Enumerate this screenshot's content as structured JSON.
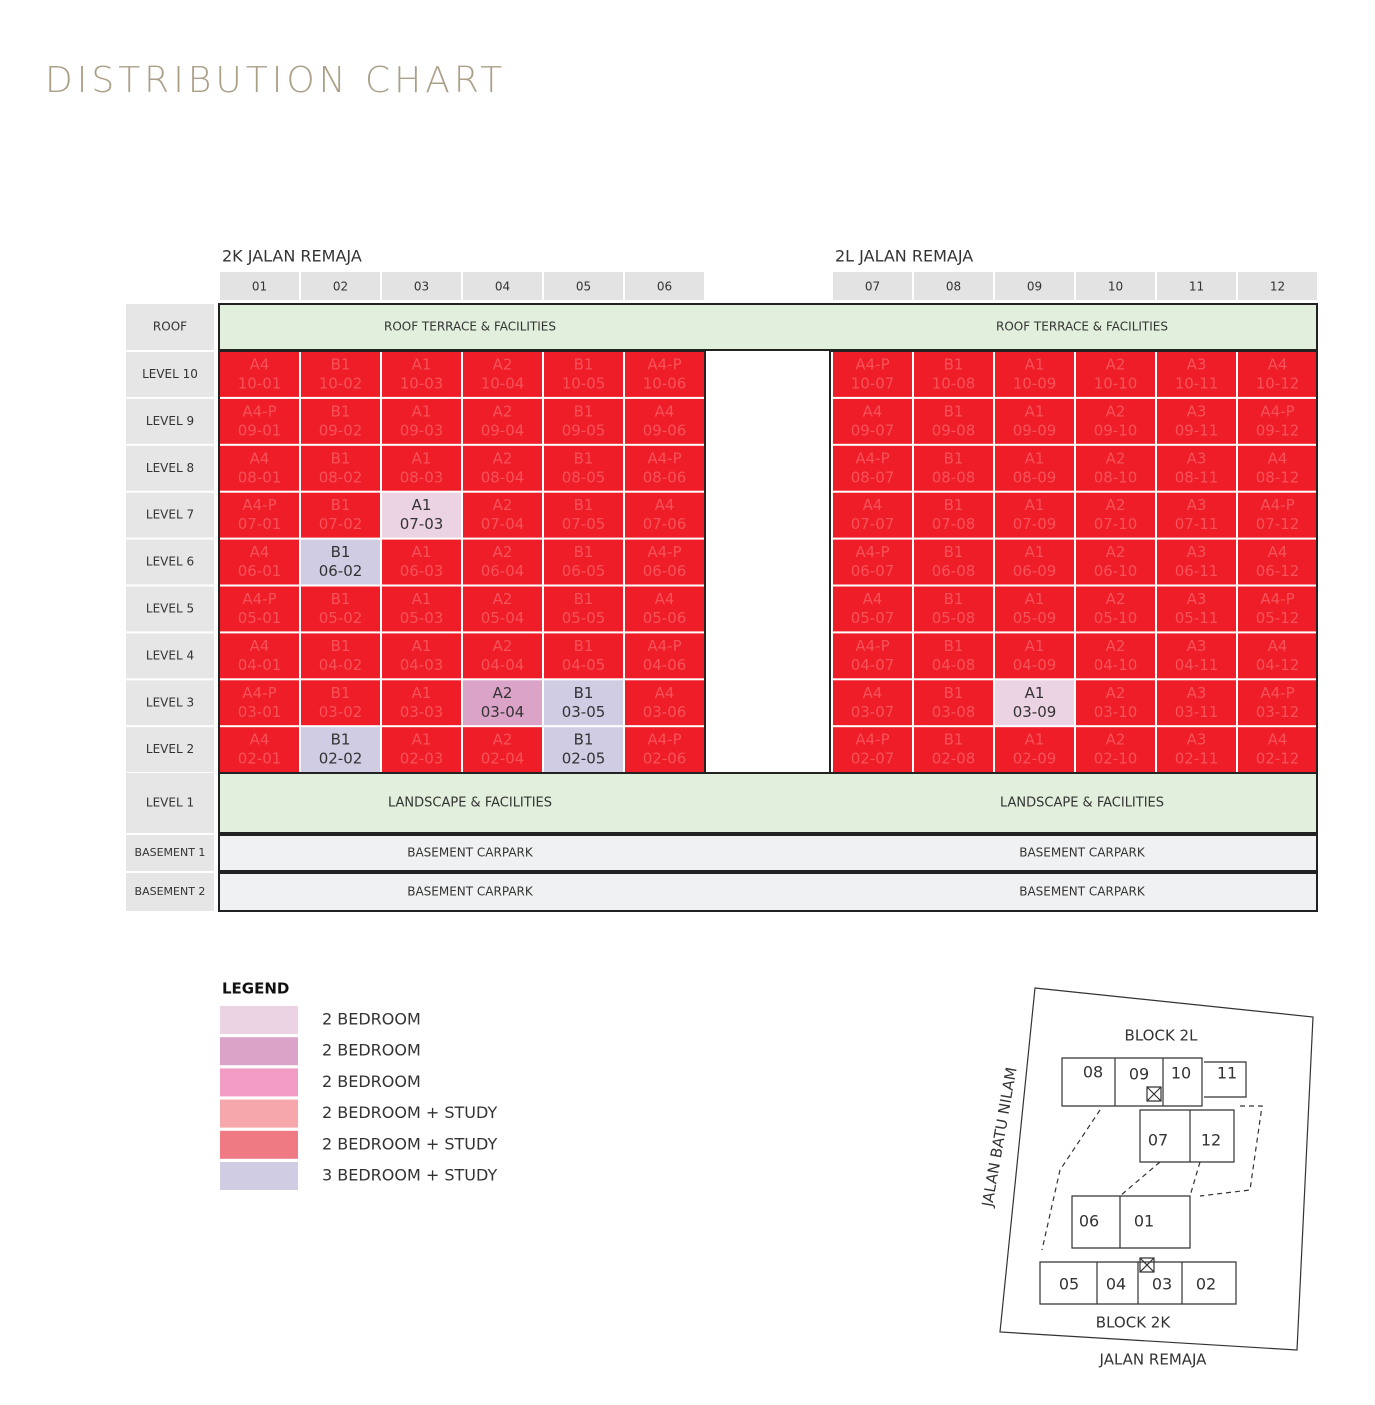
{
  "title": "DISTRIBUTION CHART",
  "blocks": [
    {
      "name": "2K JALAN REMAJA",
      "units": [
        "01",
        "02",
        "03",
        "04",
        "05",
        "06"
      ]
    },
    {
      "name": "2L JALAN REMAJA",
      "units": [
        "07",
        "08",
        "09",
        "10",
        "11",
        "12"
      ]
    }
  ],
  "roof": {
    "label": "ROOF",
    "texts": [
      "ROOF TERRACE & FACILITIES",
      "ROOF TERRACE & FACILITIES"
    ]
  },
  "sold_color": "#ee1d27",
  "levels": [
    {
      "label": "LEVEL 10",
      "cells": [
        {
          "type": "A4",
          "unit": "10-01",
          "color": "#ee1d27"
        },
        {
          "type": "B1",
          "unit": "10-02",
          "color": "#ee1d27"
        },
        {
          "type": "A1",
          "unit": "10-03",
          "color": "#ee1d27"
        },
        {
          "type": "A2",
          "unit": "10-04",
          "color": "#ee1d27"
        },
        {
          "type": "B1",
          "unit": "10-05",
          "color": "#ee1d27"
        },
        {
          "type": "A4-P",
          "unit": "10-06",
          "color": "#ee1d27"
        },
        {
          "type": "A4-P",
          "unit": "10-07",
          "color": "#ee1d27"
        },
        {
          "type": "B1",
          "unit": "10-08",
          "color": "#ee1d27"
        },
        {
          "type": "A1",
          "unit": "10-09",
          "color": "#ee1d27"
        },
        {
          "type": "A2",
          "unit": "10-10",
          "color": "#ee1d27"
        },
        {
          "type": "A3",
          "unit": "10-11",
          "color": "#ee1d27"
        },
        {
          "type": "A4",
          "unit": "10-12",
          "color": "#ee1d27"
        }
      ]
    },
    {
      "label": "LEVEL 9",
      "cells": [
        {
          "type": "A4-P",
          "unit": "09-01",
          "color": "#ee1d27"
        },
        {
          "type": "B1",
          "unit": "09-02",
          "color": "#ee1d27"
        },
        {
          "type": "A1",
          "unit": "09-03",
          "color": "#ee1d27"
        },
        {
          "type": "A2",
          "unit": "09-04",
          "color": "#ee1d27"
        },
        {
          "type": "B1",
          "unit": "09-05",
          "color": "#ee1d27"
        },
        {
          "type": "A4",
          "unit": "09-06",
          "color": "#ee1d27"
        },
        {
          "type": "A4",
          "unit": "09-07",
          "color": "#ee1d27"
        },
        {
          "type": "B1",
          "unit": "09-08",
          "color": "#ee1d27"
        },
        {
          "type": "A1",
          "unit": "09-09",
          "color": "#ee1d27"
        },
        {
          "type": "A2",
          "unit": "09-10",
          "color": "#ee1d27"
        },
        {
          "type": "A3",
          "unit": "09-11",
          "color": "#ee1d27"
        },
        {
          "type": "A4-P",
          "unit": "09-12",
          "color": "#ee1d27"
        }
      ]
    },
    {
      "label": "LEVEL 8",
      "cells": [
        {
          "type": "A4",
          "unit": "08-01",
          "color": "#ee1d27"
        },
        {
          "type": "B1",
          "unit": "08-02",
          "color": "#ee1d27"
        },
        {
          "type": "A1",
          "unit": "08-03",
          "color": "#ee1d27"
        },
        {
          "type": "A2",
          "unit": "08-04",
          "color": "#ee1d27"
        },
        {
          "type": "B1",
          "unit": "08-05",
          "color": "#ee1d27"
        },
        {
          "type": "A4-P",
          "unit": "08-06",
          "color": "#ee1d27"
        },
        {
          "type": "A4-P",
          "unit": "08-07",
          "color": "#ee1d27"
        },
        {
          "type": "B1",
          "unit": "08-08",
          "color": "#ee1d27"
        },
        {
          "type": "A1",
          "unit": "08-09",
          "color": "#ee1d27"
        },
        {
          "type": "A2",
          "unit": "08-10",
          "color": "#ee1d27"
        },
        {
          "type": "A3",
          "unit": "08-11",
          "color": "#ee1d27"
        },
        {
          "type": "A4",
          "unit": "08-12",
          "color": "#ee1d27"
        }
      ]
    },
    {
      "label": "LEVEL 7",
      "cells": [
        {
          "type": "A4-P",
          "unit": "07-01",
          "color": "#ee1d27"
        },
        {
          "type": "B1",
          "unit": "07-02",
          "color": "#ee1d27"
        },
        {
          "type": "A1",
          "unit": "07-03",
          "color": "#ecd3e3"
        },
        {
          "type": "A2",
          "unit": "07-04",
          "color": "#ee1d27"
        },
        {
          "type": "B1",
          "unit": "07-05",
          "color": "#ee1d27"
        },
        {
          "type": "A4",
          "unit": "07-06",
          "color": "#ee1d27"
        },
        {
          "type": "A4",
          "unit": "07-07",
          "color": "#ee1d27"
        },
        {
          "type": "B1",
          "unit": "07-08",
          "color": "#ee1d27"
        },
        {
          "type": "A1",
          "unit": "07-09",
          "color": "#ee1d27"
        },
        {
          "type": "A2",
          "unit": "07-10",
          "color": "#ee1d27"
        },
        {
          "type": "A3",
          "unit": "07-11",
          "color": "#ee1d27"
        },
        {
          "type": "A4-P",
          "unit": "07-12",
          "color": "#ee1d27"
        }
      ]
    },
    {
      "label": "LEVEL 6",
      "cells": [
        {
          "type": "A4",
          "unit": "06-01",
          "color": "#ee1d27"
        },
        {
          "type": "B1",
          "unit": "06-02",
          "color": "#cfcce3"
        },
        {
          "type": "A1",
          "unit": "06-03",
          "color": "#ee1d27"
        },
        {
          "type": "A2",
          "unit": "06-04",
          "color": "#ee1d27"
        },
        {
          "type": "B1",
          "unit": "06-05",
          "color": "#ee1d27"
        },
        {
          "type": "A4-P",
          "unit": "06-06",
          "color": "#ee1d27"
        },
        {
          "type": "A4-P",
          "unit": "06-07",
          "color": "#ee1d27"
        },
        {
          "type": "B1",
          "unit": "06-08",
          "color": "#ee1d27"
        },
        {
          "type": "A1",
          "unit": "06-09",
          "color": "#ee1d27"
        },
        {
          "type": "A2",
          "unit": "06-10",
          "color": "#ee1d27"
        },
        {
          "type": "A3",
          "unit": "06-11",
          "color": "#ee1d27"
        },
        {
          "type": "A4",
          "unit": "06-12",
          "color": "#ee1d27"
        }
      ]
    },
    {
      "label": "LEVEL 5",
      "cells": [
        {
          "type": "A4-P",
          "unit": "05-01",
          "color": "#ee1d27"
        },
        {
          "type": "B1",
          "unit": "05-02",
          "color": "#ee1d27"
        },
        {
          "type": "A1",
          "unit": "05-03",
          "color": "#ee1d27"
        },
        {
          "type": "A2",
          "unit": "05-04",
          "color": "#ee1d27"
        },
        {
          "type": "B1",
          "unit": "05-05",
          "color": "#ee1d27"
        },
        {
          "type": "A4",
          "unit": "05-06",
          "color": "#ee1d27"
        },
        {
          "type": "A4",
          "unit": "05-07",
          "color": "#ee1d27"
        },
        {
          "type": "B1",
          "unit": "05-08",
          "color": "#ee1d27"
        },
        {
          "type": "A1",
          "unit": "05-09",
          "color": "#ee1d27"
        },
        {
          "type": "A2",
          "unit": "05-10",
          "color": "#ee1d27"
        },
        {
          "type": "A3",
          "unit": "05-11",
          "color": "#ee1d27"
        },
        {
          "type": "A4-P",
          "unit": "05-12",
          "color": "#ee1d27"
        }
      ]
    },
    {
      "label": "LEVEL 4",
      "cells": [
        {
          "type": "A4",
          "unit": "04-01",
          "color": "#ee1d27"
        },
        {
          "type": "B1",
          "unit": "04-02",
          "color": "#ee1d27"
        },
        {
          "type": "A1",
          "unit": "04-03",
          "color": "#ee1d27"
        },
        {
          "type": "A2",
          "unit": "04-04",
          "color": "#ee1d27"
        },
        {
          "type": "B1",
          "unit": "04-05",
          "color": "#ee1d27"
        },
        {
          "type": "A4-P",
          "unit": "04-06",
          "color": "#ee1d27"
        },
        {
          "type": "A4-P",
          "unit": "04-07",
          "color": "#ee1d27"
        },
        {
          "type": "B1",
          "unit": "04-08",
          "color": "#ee1d27"
        },
        {
          "type": "A1",
          "unit": "04-09",
          "color": "#ee1d27"
        },
        {
          "type": "A2",
          "unit": "04-10",
          "color": "#ee1d27"
        },
        {
          "type": "A3",
          "unit": "04-11",
          "color": "#ee1d27"
        },
        {
          "type": "A4",
          "unit": "04-12",
          "color": "#ee1d27"
        }
      ]
    },
    {
      "label": "LEVEL 3",
      "cells": [
        {
          "type": "A4-P",
          "unit": "03-01",
          "color": "#ee1d27"
        },
        {
          "type": "B1",
          "unit": "03-02",
          "color": "#ee1d27"
        },
        {
          "type": "A1",
          "unit": "03-03",
          "color": "#ee1d27"
        },
        {
          "type": "A2",
          "unit": "03-04",
          "color": "#dca3c8"
        },
        {
          "type": "B1",
          "unit": "03-05",
          "color": "#cfcce3"
        },
        {
          "type": "A4",
          "unit": "03-06",
          "color": "#ee1d27"
        },
        {
          "type": "A4",
          "unit": "03-07",
          "color": "#ee1d27"
        },
        {
          "type": "B1",
          "unit": "03-08",
          "color": "#ee1d27"
        },
        {
          "type": "A1",
          "unit": "03-09",
          "color": "#ecd3e3"
        },
        {
          "type": "A2",
          "unit": "03-10",
          "color": "#ee1d27"
        },
        {
          "type": "A3",
          "unit": "03-11",
          "color": "#ee1d27"
        },
        {
          "type": "A4-P",
          "unit": "03-12",
          "color": "#ee1d27"
        }
      ]
    },
    {
      "label": "LEVEL 2",
      "cells": [
        {
          "type": "A4",
          "unit": "02-01",
          "color": "#ee1d27"
        },
        {
          "type": "B1",
          "unit": "02-02",
          "color": "#cfcce3"
        },
        {
          "type": "A1",
          "unit": "02-03",
          "color": "#ee1d27"
        },
        {
          "type": "A2",
          "unit": "02-04",
          "color": "#ee1d27"
        },
        {
          "type": "B1",
          "unit": "02-05",
          "color": "#cfcce3"
        },
        {
          "type": "A4-P",
          "unit": "02-06",
          "color": "#ee1d27"
        },
        {
          "type": "A4-P",
          "unit": "02-07",
          "color": "#ee1d27"
        },
        {
          "type": "B1",
          "unit": "02-08",
          "color": "#ee1d27"
        },
        {
          "type": "A1",
          "unit": "02-09",
          "color": "#ee1d27"
        },
        {
          "type": "A2",
          "unit": "02-10",
          "color": "#ee1d27"
        },
        {
          "type": "A3",
          "unit": "02-11",
          "color": "#ee1d27"
        },
        {
          "type": "A4",
          "unit": "02-12",
          "color": "#ee1d27"
        }
      ]
    }
  ],
  "ground": {
    "label": "LEVEL 1",
    "texts": [
      "LANDSCAPE & FACILITIES",
      "LANDSCAPE & FACILITIES"
    ]
  },
  "basements": [
    {
      "label": "BASEMENT 1",
      "texts": [
        "BASEMENT CARPARK",
        "BASEMENT CARPARK"
      ]
    },
    {
      "label": "BASEMENT 2",
      "texts": [
        "BASEMENT CARPARK",
        "BASEMENT CARPARK"
      ]
    }
  ],
  "legend": {
    "title": "LEGEND",
    "items": [
      {
        "color": "#ecd3e3",
        "label": "2 BEDROOM"
      },
      {
        "color": "#dca3c8",
        "label": "2 BEDROOM"
      },
      {
        "color": "#f29bc5",
        "label": "2 BEDROOM"
      },
      {
        "color": "#f5a7ab",
        "label": "2 BEDROOM + STUDY"
      },
      {
        "color": "#ef7a83",
        "label": "2 BEDROOM + STUDY"
      },
      {
        "color": "#cfcce3",
        "label": "3 BEDROOM + STUDY"
      }
    ]
  },
  "site_plan": {
    "block_top": "BLOCK 2L",
    "block_bottom": "BLOCK 2K",
    "road_side": "JALAN BATU NILAM",
    "road_bottom": "JALAN REMAJA",
    "units": [
      "08",
      "09",
      "10",
      "11",
      "07",
      "12",
      "06",
      "01",
      "05",
      "04",
      "03",
      "02"
    ]
  }
}
